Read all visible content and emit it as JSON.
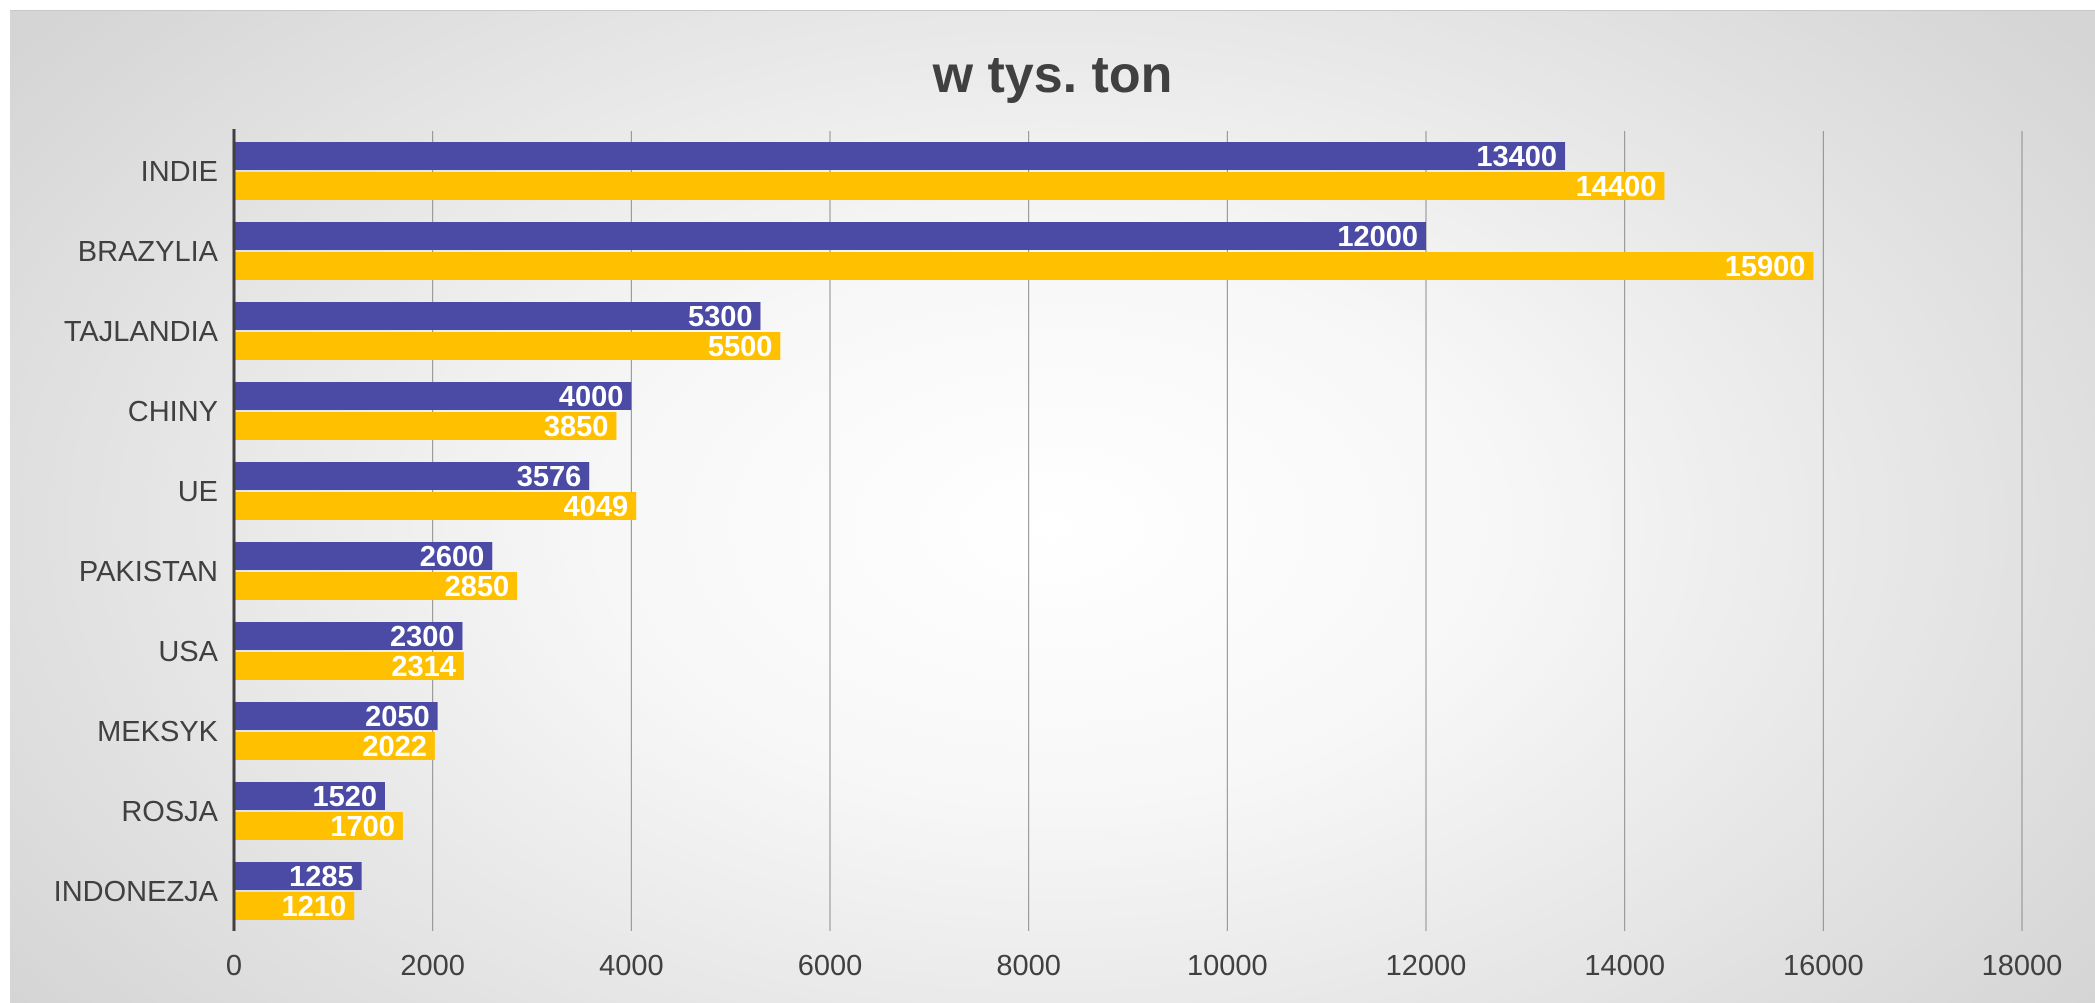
{
  "chart_data": {
    "type": "bar",
    "orientation": "horizontal",
    "title": "w tys. ton",
    "xlabel": "",
    "ylabel": "",
    "categories": [
      "INDIE",
      "BRAZYLIA",
      "TAJLANDIA",
      "CHINY",
      "UE",
      "PAKISTAN",
      "USA",
      "MEKSYK",
      "ROSJA",
      "INDONEZJA"
    ],
    "series": [
      {
        "color": "#4b4ba6",
        "values": [
          13400,
          12000,
          5300,
          4000,
          3576,
          2600,
          2300,
          2050,
          1520,
          1285
        ]
      },
      {
        "color": "#ffc000",
        "values": [
          14400,
          15900,
          5500,
          3850,
          4049,
          2850,
          2314,
          2022,
          1700,
          1210
        ]
      }
    ],
    "xlim": [
      0,
      18000
    ],
    "xticks": [
      0,
      2000,
      4000,
      6000,
      8000,
      10000,
      12000,
      14000,
      16000,
      18000
    ],
    "grid": "vertical",
    "legend": "none",
    "data_labels": "inside-end"
  }
}
